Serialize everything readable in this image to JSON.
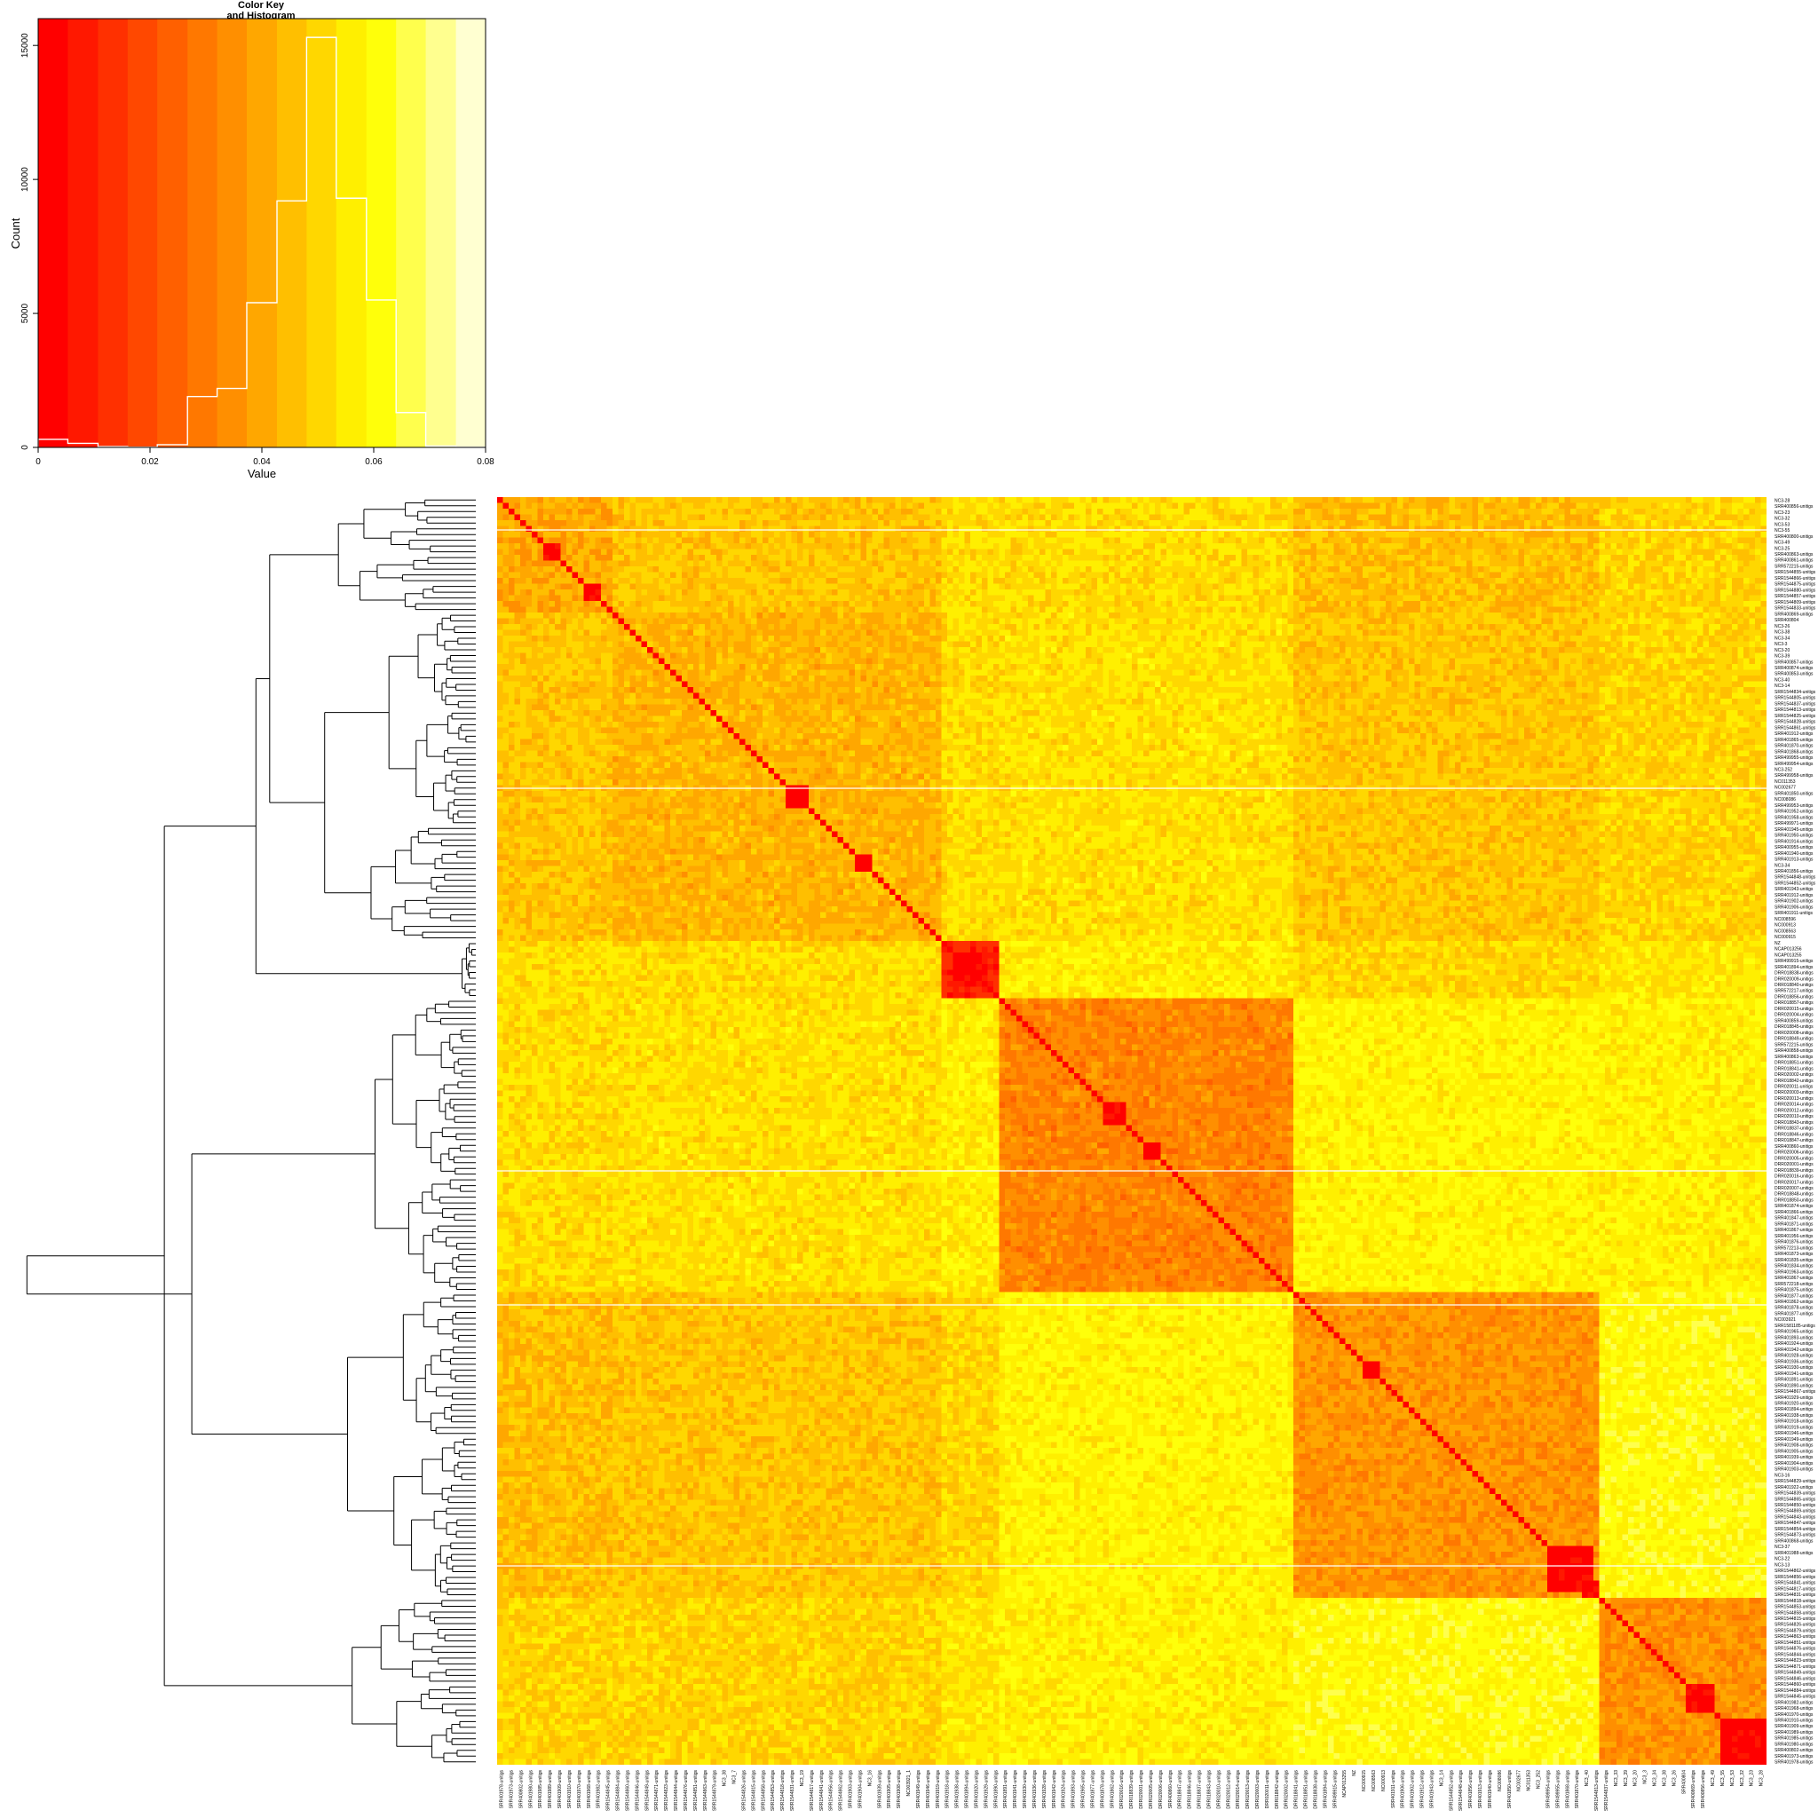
{
  "chart_data": [
    {
      "type": "bar",
      "role": "color-key-histogram",
      "title": "Color Key\nand Histogram",
      "title_lines": [
        "Color Key",
        "and Histogram"
      ],
      "xlabel": "Value",
      "ylabel": "Count",
      "xlim": [
        0,
        0.08
      ],
      "ylim": [
        0,
        16000
      ],
      "x_ticks": [
        0,
        0.02,
        0.04,
        0.06,
        0.08
      ],
      "x_tick_labels": [
        "0",
        "0.02",
        "0.04",
        "0.06",
        "0.08"
      ],
      "y_ticks": [
        0,
        5000,
        10000,
        15000
      ],
      "y_tick_labels": [
        "0",
        "5000",
        "10000",
        "15000"
      ],
      "color_breaks": [
        0,
        0.0053,
        0.0107,
        0.016,
        0.0213,
        0.0267,
        0.032,
        0.0373,
        0.0427,
        0.048,
        0.0533,
        0.0587,
        0.064,
        0.0693,
        0.0747,
        0.08
      ],
      "colors": [
        "#FF0000",
        "#FF1800",
        "#FF3000",
        "#FF4800",
        "#FF6000",
        "#FF7800",
        "#FF8F00",
        "#FFA700",
        "#FFBF00",
        "#FFD700",
        "#FFEF00",
        "#FFFF0A",
        "#FFFF4D",
        "#FFFF8F",
        "#FFFFD1"
      ],
      "histogram_color": "#FFFFFF",
      "bin_edges": [
        0,
        0.0053,
        0.0107,
        0.016,
        0.0213,
        0.0267,
        0.032,
        0.0373,
        0.0427,
        0.048,
        0.0533,
        0.0587,
        0.064,
        0.0693,
        0.0747,
        0.08
      ],
      "counts": [
        300,
        150,
        30,
        10,
        100,
        1900,
        2200,
        5400,
        9200,
        15300,
        9300,
        5500,
        1300,
        50,
        10
      ]
    },
    {
      "type": "heatmap",
      "role": "distance-matrix",
      "n": 220,
      "color_scale": [
        "#FF0000",
        "#FF1800",
        "#FF3000",
        "#FF4800",
        "#FF6000",
        "#FF7800",
        "#FF8F00",
        "#FFA700",
        "#FFBF00",
        "#FFD700",
        "#FFEF00",
        "#FFFF0A",
        "#FFFF4D",
        "#FFFF8F",
        "#FFFFD1"
      ],
      "value_range": [
        0,
        0.08
      ],
      "clusters": [
        {
          "start": 0,
          "end": 19,
          "within": 0.04,
          "diag_block": [
            [
              15,
              17
            ],
            [
              8,
              10
            ]
          ]
        },
        {
          "start": 20,
          "end": 76,
          "within": 0.043,
          "diag_block": [
            [
              50,
              53
            ],
            [
              62,
              64
            ]
          ]
        },
        {
          "start": 77,
          "end": 86,
          "within": 0.01,
          "diag_block": [
            [
              79,
              84
            ]
          ]
        },
        {
          "start": 87,
          "end": 137,
          "within": 0.032,
          "diag_block": [
            [
              105,
              108
            ],
            [
              112,
              114
            ]
          ]
        },
        {
          "start": 138,
          "end": 190,
          "within": 0.036,
          "diag_block": [
            [
              182,
              189
            ],
            [
              150,
              152
            ],
            [
              188,
              190
            ]
          ]
        },
        {
          "start": 191,
          "end": 219,
          "within": 0.035,
          "diag_block": [
            [
              206,
              210
            ],
            [
              212,
              219
            ]
          ]
        }
      ],
      "between": [
        [
          0.04,
          0.047,
          0.052,
          0.052,
          0.045,
          0.05
        ],
        [
          0.047,
          0.043,
          0.052,
          0.053,
          0.047,
          0.05
        ],
        [
          0.052,
          0.052,
          0.01,
          0.056,
          0.051,
          0.054
        ],
        [
          0.052,
          0.053,
          0.056,
          0.032,
          0.058,
          0.057
        ],
        [
          0.045,
          0.047,
          0.051,
          0.058,
          0.036,
          0.06
        ],
        [
          0.05,
          0.05,
          0.054,
          0.057,
          0.06,
          0.035
        ]
      ],
      "row_labels_visible": [
        "NC3-28",
        "SRR400856-unitigs",
        "NC3-23",
        "NC3-32",
        "NC3-53",
        "NC3-55",
        "SRR400800-unitigs",
        "NC3-49",
        "NC3-25",
        "SRR400863-unitigs",
        "SRR400861-unitigs",
        "SRR572215-unitigs",
        "SRR1544855-unitigs",
        "SRR1544866-unitigs",
        "SRR1544875-unitigs",
        "SRR1544880-unitigs",
        "SRR1544857-unitigs",
        "SRR1544809-unitigs",
        "SRR1544833-unitigs",
        "SRR400869-unitigs",
        "SRR400804",
        "NC3-26",
        "NC3-38",
        "NC3-34",
        "NC3-3",
        "NC3-20",
        "NC3-39",
        "SRR400857-unitigs",
        "SRR400874-unitigs",
        "SRR400853-unitigs",
        "NC3-40",
        "NC3-14",
        "SRR1544834-unitigs",
        "SRR1544805-unitigs",
        "SRR1544837-unitigs",
        "SRR1544813-unitigs",
        "SRR1544825-unitigs",
        "SRR1544828-unitigs",
        "SRR1544861-unitigs",
        "SRR401912-unitigs",
        "SRR401865-unitigs",
        "SRR401870-unitigs",
        "SRR401868-unitigs",
        "SRR499955-unitigs",
        "SRR499954-unitigs",
        "NC3-252",
        "SRR499958-unitigs",
        "NC011353",
        "NC002677",
        "SRR401850-unitigs",
        "NC008086",
        "SRR499953-unitigs",
        "SRR401952-unitigs",
        "SRR401958-unitigs",
        "SRR499971-unitigs",
        "SRR401945-unitigs",
        "SRR401950-unitigs",
        "SRR401914-unitigs",
        "SRR400955-unitigs",
        "SRR401940-unitigs",
        "SRR401913-unitigs",
        "NC3-34",
        "SRR401856-unitigs",
        "SRR1544848-unitigs",
        "SRR1544852-unitigs",
        "SRR401943-unitigs",
        "SRR401912-unitigs",
        "SRR401902-unitigs",
        "SRR401906-unitigs",
        "SRR401911-unitigs",
        "NC008596",
        "NC000913",
        "NC008563",
        "NC000915",
        "NZ",
        "NCAP013256",
        "NCAP013255",
        "SRR499915-unitigs",
        "SRR401894-unitigs",
        "DRR018838-unitigs",
        "DRR020009-unitigs",
        "DRR018840-unitigs",
        "SRR572217-unitigs",
        "DRR018856-unitigs",
        "DRR018857-unitigs",
        "DRR020015-unitigs",
        "DRR020004-unitigs",
        "SRR400859-unitigs",
        "DRR018845-unitigs",
        "DRR020008-unitigs",
        "DRR018849-unitigs",
        "SRR572215-unitigs",
        "SRR400858-unitigs",
        "SRR400863-unitigs",
        "DRR018851-unitigs",
        "DRR018841-unitigs",
        "DRR020002-unitigs",
        "DRR018842-unitigs",
        "DRR020011-unitigs",
        "DRR020003-unitigs",
        "DRR020013-unitigs",
        "DRR020014-unitigs",
        "DRR020012-unitigs",
        "DRR020010-unitigs",
        "DRR018843-unitigs",
        "DRR018837-unitigs",
        "DRR018846-unitigs",
        "DRR018847-unitigs",
        "SRR400860-unitigs",
        "DRR020006-unitigs",
        "DRR020005-unitigs",
        "DRR020001-unitigs",
        "DRR018839-unitigs",
        "DRR020016-unitigs",
        "DRR020017-unitigs",
        "DRR020007-unitigs",
        "DRR018848-unitigs",
        "DRR018850-unitigs",
        "SRR401874-unitigs",
        "SRR401866-unitigs",
        "SRR401847-unitigs",
        "SRR401871-unitigs",
        "SRR401867-unitigs",
        "SRR401956-unitigs",
        "SRR401876-unitigs",
        "SRR572213-unitigs",
        "SRR401873-unitigs",
        "SRR401835-unitigs",
        "SRR401834-unitigs",
        "SRR401963-unitigs",
        "SRR401867-unitigs",
        "SRR572218-unitigs",
        "SRR401875-unitigs",
        "SRR401877-unitigs",
        "SRR401862-unitigs",
        "SRR401878-unitigs",
        "SRR401877-unitigs",
        "NC003921",
        "SRR1581185-unitigs",
        "SRR401965-unitigs",
        "SRR401893-unitigs",
        "SRR401924-unitigs",
        "SRR401942-unitigs",
        "SRR401928-unitigs",
        "SRR401936-unitigs",
        "SRR401930-unitigs",
        "SRR401941-unitigs",
        "SRR401891-unitigs",
        "SRR401890-unitigs",
        "SRR1544867-unitigs",
        "SRR401929-unitigs",
        "SRR401920-unitigs",
        "SRR401894-unitigs",
        "SRR401938-unitigs",
        "SRR401918-unitigs",
        "SRR401919-unitigs",
        "SRR401946-unitigs",
        "SRR401949-unitigs",
        "SRR401908-unitigs",
        "SRR401905-unitigs",
        "SRR401939-unitigs",
        "SRR401904-unitigs",
        "SRR401903-unitigs",
        "NC3-16",
        "SRR1544829-unitigs",
        "SRR401922-unitigs",
        "SRR1544839-unitigs",
        "SRR1544865-unitigs",
        "SRR1544850-unitigs",
        "SRR1544869-unitigs",
        "SRR1544843-unitigs",
        "SRR1544847-unitigs",
        "SRR1544854-unitigs",
        "SRR1544873-unitigs",
        "SRR400868-unitigs",
        "NC3-37",
        "SRR401988-unitigs",
        "NC3-22",
        "NC3-13",
        "SRR1544862-unitigs",
        "SRR1544856-unitigs",
        "SRR1544841-unitigs",
        "SRR1544817-unitigs",
        "SRR1544831-unitigs",
        "SRR1544818-unitigs",
        "SRR1544853-unitigs",
        "SRR1544858-unitigs",
        "SRR1544815-unitigs",
        "SRR1544826-unitigs",
        "SRR1544879-unitigs",
        "SRR1544863-unitigs",
        "SRR1544851-unitigs",
        "SRR1544876-unitigs",
        "SRR1544844-unitigs",
        "SRR1544823-unitigs",
        "SRR1544871-unitigs",
        "SRR1544849-unitigs",
        "SRR1544846-unitigs",
        "SRR1544860-unitigs",
        "SRR1544884-unitigs",
        "SRR1544845-unitigs",
        "SRR401982-unitigs",
        "SRR401968-unitigs",
        "SRR401970-unitigs",
        "SRR401910-unitigs",
        "SRR401909-unitigs",
        "SRR401989-unitigs",
        "SRR401985-unitigs",
        "SRR401980-unitigs",
        "SRR400802-unitigs",
        "SRR401973-unitigs",
        "SRR401978-unitigs"
      ],
      "col_labels_visible": [
        "SRR401978-unitigs",
        "SRR401973-unitigs",
        "SRR400802-unitigs",
        "SRR401980-unitigs",
        "SRR401985-unitigs",
        "SRR401989-unitigs",
        "SRR401909-unitigs",
        "SRR401910-unitigs",
        "SRR401970-unitigs",
        "SRR401968-unitigs",
        "SRR401982-unitigs",
        "SRR1544845-unitigs",
        "SRR1544884-unitigs",
        "SRR1544860-unitigs",
        "SRR1544846-unitigs",
        "SRR1544849-unitigs",
        "SRR1544871-unitigs",
        "SRR1544823-unitigs",
        "SRR1544844-unitigs",
        "SRR1544876-unitigs",
        "SRR1544851-unitigs",
        "SRR1544863-unitigs",
        "SRR1544879-unitigs",
        "NC3_38",
        "NC3_7",
        "SRR1544826-unitigs",
        "SRR1544815-unitigs",
        "SRR1544858-unitigs",
        "SRR1544853-unitigs",
        "SRR1544818-unitigs",
        "SRR1544831-unitigs",
        "NC3_19",
        "SRR1544817-unitigs",
        "SRR1544841-unitigs",
        "SRR1544856-unitigs",
        "SRR1544862-unitigs",
        "SRR401903-unitigs",
        "SRR401904-unitigs",
        "NC3_16",
        "SRR401939-unitigs",
        "SRR401905-unitigs",
        "SRR401908-unitigs",
        "NC003921_1",
        "SRR401949-unitigs",
        "SRR401946-unitigs",
        "SRR401919-unitigs",
        "SRR401918-unitigs",
        "SRR401938-unitigs",
        "SRR401894-unitigs",
        "SRR401920-unitigs",
        "SRR401929-unitigs",
        "SRR401890-unitigs",
        "SRR401891-unitigs",
        "SRR401941-unitigs",
        "SRR401930-unitigs",
        "SRR401936-unitigs",
        "SRR401928-unitigs",
        "SRR401942-unitigs",
        "SRR401924-unitigs",
        "SRR401893-unitigs",
        "SRR401965-unitigs",
        "SRR401877-unitigs",
        "SRR401878-unitigs",
        "SRR401862-unitigs",
        "DRR020016-unitigs",
        "DRR018839-unitigs",
        "DRR020001-unitigs",
        "DRR020005-unitigs",
        "DRR020006-unitigs",
        "SRR400860-unitigs",
        "DRR018847-unitigs",
        "DRR018846-unitigs",
        "DRR018837-unitigs",
        "DRR018843-unitigs",
        "DRR020010-unitigs",
        "DRR020012-unitigs",
        "DRR020014-unitigs",
        "DRR020013-unitigs",
        "DRR020003-unitigs",
        "DRR020011-unitigs",
        "DRR018842-unitigs",
        "DRR020002-unitigs",
        "DRR018841-unitigs",
        "DRR018851-unitigs",
        "DRR018838-unitigs",
        "SRR401894-unitigs",
        "SRR499915-unitigs",
        "NCAP013255",
        "NZ",
        "NC000915",
        "NC008563",
        "NC000913",
        "SRR401911-unitigs",
        "SRR401906-unitigs",
        "SRR401902-unitigs",
        "SRR401912-unitigs",
        "SRR401943-unitigs",
        "NC3_14",
        "SRR1544852-unitigs",
        "SRR1544848-unitigs",
        "SRR401856-unitigs",
        "SRR401913-unitigs",
        "SRR401940-unitigs",
        "NC008086",
        "SRR401850-unitigs",
        "NC002677",
        "NC011353",
        "NC3_252",
        "SRR499954-unitigs",
        "SRR499955-unitigs",
        "SRR401868-unitigs",
        "SRR401870-unitigs",
        "NC3_40",
        "SRR1544813-unitigs",
        "SRR1544837-unitigs",
        "NC3_33",
        "NC3_39",
        "NC3_20",
        "NC3_3",
        "NC3_34",
        "NC3_38",
        "NC3_26",
        "SRR400804",
        "SRR400869-unitigs",
        "SRR400856-unitigs",
        "NC3_49",
        "NC3_55",
        "NC3_53",
        "NC3_32",
        "NC3_23",
        "NC3_28"
      ]
    },
    {
      "type": "dendrogram",
      "role": "row-dendrogram",
      "leaves": 220,
      "groups": [
        {
          "start": 0,
          "end": 19,
          "height": 0.3
        },
        {
          "start": 20,
          "end": 76,
          "height": 0.33
        },
        {
          "start": 77,
          "end": 86,
          "height": 0.03
        },
        {
          "start": 87,
          "end": 137,
          "height": 0.22
        },
        {
          "start": 138,
          "end": 190,
          "height": 0.28
        },
        {
          "start": 191,
          "end": 219,
          "height": 0.27
        }
      ],
      "joins": [
        {
          "left": [
            0,
            1
          ],
          "height": 0.45
        },
        {
          "left": [
            0,
            1,
            2
          ],
          "height": 0.48
        },
        {
          "left": [
            3,
            4
          ],
          "height": 0.62
        },
        {
          "left": [
            0,
            1,
            2,
            5
          ],
          "height": 0.68
        },
        {
          "left": [
            0,
            1,
            2,
            5,
            3,
            4
          ],
          "height": 0.98
        }
      ]
    }
  ]
}
